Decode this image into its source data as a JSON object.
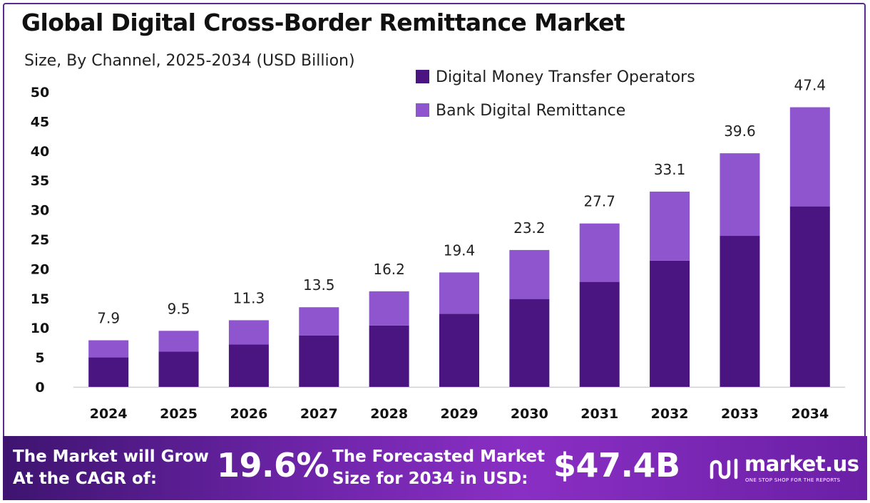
{
  "title": "Global Digital Cross-Border Remittance Market",
  "subtitle": "Size, By Channel, 2025-2034 (USD Billion)",
  "colors": {
    "dmto": "#4a1580",
    "bank": "#8f55cf",
    "axis": "#cfcfcf",
    "footer_start": "#3e1470",
    "footer_end": "#8a2fc4"
  },
  "chart_data": {
    "type": "bar",
    "stacked": true,
    "categories": [
      "2024",
      "2025",
      "2026",
      "2027",
      "2028",
      "2029",
      "2030",
      "2031",
      "2032",
      "2033",
      "2034"
    ],
    "series": [
      {
        "name": "Digital Money Transfer Operators",
        "values": [
          5.0,
          6.0,
          7.2,
          8.7,
          10.4,
          12.4,
          14.9,
          17.8,
          21.4,
          25.6,
          30.6
        ]
      },
      {
        "name": "Bank Digital Remittance",
        "values": [
          2.9,
          3.5,
          4.1,
          4.8,
          5.8,
          7.0,
          8.3,
          9.9,
          11.7,
          14.0,
          16.8
        ]
      }
    ],
    "totals": [
      7.9,
      9.5,
      11.3,
      13.5,
      16.2,
      19.4,
      23.2,
      27.7,
      33.1,
      39.6,
      47.4
    ],
    "total_labels": [
      "7.9",
      "9.5",
      "11.3",
      "13.5",
      "16.2",
      "19.4",
      "23.2",
      "27.7",
      "33.1",
      "39.6",
      "47.4"
    ],
    "y_ticks": [
      0,
      5,
      10,
      15,
      20,
      25,
      30,
      35,
      40,
      45,
      50
    ],
    "ylim": [
      0,
      50
    ],
    "grid": false,
    "legend_position": "top"
  },
  "footer": {
    "cagr_text_line1": "The Market will Grow",
    "cagr_text_line2": "At the CAGR of:",
    "cagr_value": "19.6%",
    "forecast_text_line1": "The Forecasted Market",
    "forecast_text_line2": "Size for 2034 in USD:",
    "forecast_value": "$47.4B",
    "logo_name": "market.us",
    "logo_tagline": "ONE STOP SHOP FOR THE REPORTS"
  }
}
